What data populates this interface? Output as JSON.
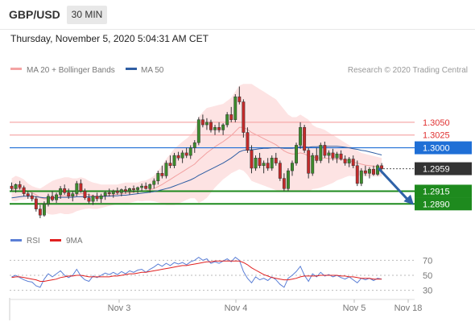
{
  "header": {
    "pair": "GBP/USD",
    "timeframe": "30 MIN"
  },
  "datetime": "Thursday, November 5, 2020 5:04:31 AM CET",
  "credit": "Research © 2020 Trading Central",
  "legend": {
    "bollinger": {
      "label": "MA 20 + Bollinger Bands",
      "color": "#f4a3a3"
    },
    "ma50": {
      "label": "MA 50",
      "color": "#2f5ea3"
    },
    "rsi": {
      "label": "RSI",
      "color": "#5b7fd6"
    },
    "rsi_ma": {
      "label": "9MA",
      "color": "#e02020"
    }
  },
  "chart_data": [
    {
      "type": "candlestick",
      "ylim": [
        1.284,
        1.3135
      ],
      "x_ticks": [
        "Nov 3",
        "Nov 4",
        "Nov 5",
        "Nov 18"
      ],
      "levels": [
        {
          "value": 1.305,
          "label": "1.3050",
          "kind": "resistance",
          "color": "#e03030"
        },
        {
          "value": 1.3025,
          "label": "1.3025",
          "kind": "resistance",
          "color": "#e03030"
        },
        {
          "value": 1.3,
          "label": "1.3000",
          "kind": "pivot",
          "color": "#1f6fd6"
        },
        {
          "value": 1.2915,
          "label": "1.2915",
          "kind": "support",
          "color": "#1e8a1e"
        },
        {
          "value": 1.289,
          "label": "1.2890",
          "kind": "support",
          "color": "#1e8a1e"
        }
      ],
      "current_price": {
        "value": 1.2959,
        "label": "1.2959",
        "color": "#333333"
      },
      "forecast_arrow": {
        "from": 1.296,
        "to": 1.2888,
        "color": "#2f62a8"
      },
      "candles": [
        [
          1.2925,
          1.2932,
          1.2915,
          1.292
        ],
        [
          1.292,
          1.293,
          1.2912,
          1.2928
        ],
        [
          1.2928,
          1.2935,
          1.2918,
          1.2922
        ],
        [
          1.2922,
          1.2926,
          1.2905,
          1.291
        ],
        [
          1.291,
          1.2915,
          1.29,
          1.2906
        ],
        [
          1.2906,
          1.2912,
          1.2895,
          1.29
        ],
        [
          1.29,
          1.2905,
          1.2875,
          1.288
        ],
        [
          1.288,
          1.2888,
          1.2862,
          1.2868
        ],
        [
          1.2868,
          1.2895,
          1.2865,
          1.289
        ],
        [
          1.289,
          1.291,
          1.2885,
          1.2905
        ],
        [
          1.2905,
          1.2915,
          1.2895,
          1.2898
        ],
        [
          1.2898,
          1.2912,
          1.2892,
          1.2908
        ],
        [
          1.2908,
          1.2925,
          1.29,
          1.292
        ],
        [
          1.292,
          1.2928,
          1.2908,
          1.2912
        ],
        [
          1.2912,
          1.292,
          1.29,
          1.2905
        ],
        [
          1.2905,
          1.2915,
          1.2895,
          1.291
        ],
        [
          1.291,
          1.2935,
          1.2905,
          1.293
        ],
        [
          1.293,
          1.2938,
          1.2912,
          1.2915
        ],
        [
          1.2915,
          1.292,
          1.2898,
          1.2902
        ],
        [
          1.2902,
          1.291,
          1.289,
          1.2895
        ],
        [
          1.2895,
          1.2908,
          1.2888,
          1.2905
        ],
        [
          1.2905,
          1.2912,
          1.2895,
          1.29
        ],
        [
          1.29,
          1.291,
          1.2892,
          1.2906
        ],
        [
          1.2906,
          1.2915,
          1.2898,
          1.2912
        ],
        [
          1.2912,
          1.292,
          1.2905,
          1.291
        ],
        [
          1.291,
          1.2918,
          1.2902,
          1.2915
        ],
        [
          1.2915,
          1.2922,
          1.2908,
          1.2912
        ],
        [
          1.2912,
          1.292,
          1.2905,
          1.2918
        ],
        [
          1.2918,
          1.2925,
          1.291,
          1.2915
        ],
        [
          1.2915,
          1.2922,
          1.2908,
          1.292
        ],
        [
          1.292,
          1.2926,
          1.2912,
          1.2918
        ],
        [
          1.2918,
          1.2924,
          1.291,
          1.2922
        ],
        [
          1.2922,
          1.293,
          1.2915,
          1.2925
        ],
        [
          1.2925,
          1.2932,
          1.2918,
          1.292
        ],
        [
          1.292,
          1.293,
          1.2912,
          1.2928
        ],
        [
          1.2928,
          1.294,
          1.292,
          1.2935
        ],
        [
          1.2935,
          1.2955,
          1.2928,
          1.295
        ],
        [
          1.295,
          1.2965,
          1.294,
          1.2945
        ],
        [
          1.2945,
          1.2975,
          1.294,
          1.297
        ],
        [
          1.297,
          1.2985,
          1.296,
          1.2965
        ],
        [
          1.2965,
          1.299,
          1.296,
          1.2985
        ],
        [
          1.2985,
          1.2992,
          1.2975,
          1.298
        ],
        [
          1.298,
          1.2995,
          1.297,
          1.299
        ],
        [
          1.299,
          1.3,
          1.298,
          1.2985
        ],
        [
          1.2985,
          1.3005,
          1.2978,
          1.3
        ],
        [
          1.3,
          1.3015,
          1.299,
          1.301
        ],
        [
          1.301,
          1.306,
          1.3005,
          1.3055
        ],
        [
          1.3055,
          1.3065,
          1.304,
          1.3045
        ],
        [
          1.3045,
          1.3058,
          1.3035,
          1.305
        ],
        [
          1.305,
          1.3055,
          1.303,
          1.3035
        ],
        [
          1.3035,
          1.3045,
          1.3025,
          1.304
        ],
        [
          1.304,
          1.305,
          1.303,
          1.3035
        ],
        [
          1.3035,
          1.3048,
          1.3025,
          1.3045
        ],
        [
          1.3045,
          1.307,
          1.304,
          1.3065
        ],
        [
          1.3065,
          1.308,
          1.305,
          1.3055
        ],
        [
          1.3055,
          1.3105,
          1.305,
          1.31
        ],
        [
          1.31,
          1.312,
          1.3085,
          1.309
        ],
        [
          1.309,
          1.3095,
          1.302,
          1.303
        ],
        [
          1.303,
          1.304,
          1.299,
          1.2995
        ],
        [
          1.2995,
          1.3005,
          1.295,
          1.296
        ],
        [
          1.296,
          1.2985,
          1.2955,
          1.298
        ],
        [
          1.298,
          1.299,
          1.296,
          1.2965
        ],
        [
          1.2965,
          1.2975,
          1.295,
          1.297
        ],
        [
          1.297,
          1.298,
          1.2955,
          1.296
        ],
        [
          1.296,
          1.2985,
          1.2955,
          1.298
        ],
        [
          1.298,
          1.299,
          1.2965,
          1.297
        ],
        [
          1.297,
          1.2975,
          1.2935,
          1.294
        ],
        [
          1.294,
          1.295,
          1.2915,
          1.292
        ],
        [
          1.292,
          1.296,
          1.2915,
          1.2955
        ],
        [
          1.2955,
          1.2975,
          1.2945,
          1.297
        ],
        [
          1.297,
          1.301,
          1.2965,
          1.3005
        ],
        [
          1.3005,
          1.305,
          1.2998,
          1.304
        ],
        [
          1.304,
          1.3045,
          1.299,
          1.2995
        ],
        [
          1.2995,
          1.3,
          1.294,
          1.295
        ],
        [
          1.295,
          1.299,
          1.2945,
          1.2985
        ],
        [
          1.2985,
          1.3,
          1.297,
          1.2975
        ],
        [
          1.2975,
          1.301,
          1.297,
          1.3005
        ],
        [
          1.3005,
          1.3012,
          1.298,
          1.2985
        ],
        [
          1.2985,
          1.2995,
          1.297,
          1.299
        ],
        [
          1.299,
          1.2998,
          1.2975,
          1.298
        ],
        [
          1.298,
          1.2992,
          1.297,
          1.2988
        ],
        [
          1.2988,
          1.2995,
          1.2975,
          1.2978
        ],
        [
          1.2978,
          1.2985,
          1.2965,
          1.297
        ],
        [
          1.297,
          1.2982,
          1.2962,
          1.2978
        ],
        [
          1.2978,
          1.2985,
          1.296,
          1.2965
        ],
        [
          1.2965,
          1.2975,
          1.2925,
          1.293
        ],
        [
          1.293,
          1.296,
          1.2925,
          1.2955
        ],
        [
          1.2955,
          1.2965,
          1.2945,
          1.295
        ],
        [
          1.295,
          1.2962,
          1.294,
          1.2958
        ],
        [
          1.2958,
          1.2965,
          1.2945,
          1.2948
        ],
        [
          1.2948,
          1.2968,
          1.2945,
          1.2965
        ],
        [
          1.2965,
          1.297,
          1.295,
          1.2959
        ]
      ],
      "bollinger": {
        "upper": [
          1.294,
          1.2945,
          1.2942,
          1.2938,
          1.293,
          1.2925,
          1.2922,
          1.292,
          1.2925,
          1.293,
          1.2935,
          1.2938,
          1.294,
          1.2942,
          1.2942,
          1.294,
          1.294,
          1.2942,
          1.294,
          1.2935,
          1.2932,
          1.293,
          1.2928,
          1.2928,
          1.2928,
          1.2928,
          1.2928,
          1.293,
          1.2932,
          1.2932,
          1.2932,
          1.2932,
          1.2935,
          1.2936,
          1.294,
          1.2945,
          1.2955,
          1.2965,
          1.2978,
          1.2988,
          1.2998,
          1.3005,
          1.3012,
          1.3018,
          1.3025,
          1.3035,
          1.306,
          1.307,
          1.3078,
          1.308,
          1.3082,
          1.3084,
          1.3086,
          1.3092,
          1.3098,
          1.311,
          1.3122,
          1.3125,
          1.3125,
          1.3125,
          1.312,
          1.3115,
          1.311,
          1.3105,
          1.31,
          1.3095,
          1.3085,
          1.3075,
          1.3065,
          1.306,
          1.306,
          1.3065,
          1.306,
          1.3055,
          1.3045,
          1.304,
          1.3038,
          1.3035,
          1.303,
          1.3025,
          1.302,
          1.3015,
          1.301,
          1.3005,
          1.3,
          1.2995,
          1.299,
          1.2988,
          1.2986,
          1.2984,
          1.2982,
          1.298
        ],
        "middle": [
          1.2918,
          1.292,
          1.292,
          1.2918,
          1.2915,
          1.2912,
          1.2908,
          1.2902,
          1.29,
          1.29,
          1.2902,
          1.2904,
          1.2906,
          1.2906,
          1.2906,
          1.2906,
          1.2908,
          1.291,
          1.291,
          1.2908,
          1.2906,
          1.2905,
          1.2905,
          1.2906,
          1.2907,
          1.2908,
          1.2909,
          1.291,
          1.2911,
          1.2912,
          1.2913,
          1.2914,
          1.2915,
          1.2916,
          1.2918,
          1.292,
          1.2924,
          1.2928,
          1.2933,
          1.2938,
          1.2943,
          1.2948,
          1.2953,
          1.2958,
          1.2963,
          1.2968,
          1.2976,
          1.2983,
          1.299,
          1.2996,
          1.3002,
          1.3007,
          1.3012,
          1.3018,
          1.3024,
          1.3032,
          1.304,
          1.304,
          1.3036,
          1.303,
          1.3026,
          1.3022,
          1.3018,
          1.3014,
          1.301,
          1.3006,
          1.3,
          1.2994,
          1.299,
          1.2988,
          1.2988,
          1.299,
          1.2988,
          1.2984,
          1.2982,
          1.298,
          1.298,
          1.298,
          1.2979,
          1.2978,
          1.2978,
          1.2977,
          1.2976,
          1.2975,
          1.2972,
          1.297,
          1.2968,
          1.2966,
          1.2965,
          1.2964,
          1.2963,
          1.2962
        ],
        "lower": [
          1.2896,
          1.2895,
          1.2898,
          1.2898,
          1.29,
          1.2899,
          1.2894,
          1.2884,
          1.2875,
          1.287,
          1.2869,
          1.287,
          1.2872,
          1.287,
          1.287,
          1.2872,
          1.2876,
          1.2878,
          1.288,
          1.2881,
          1.288,
          1.288,
          1.2882,
          1.2884,
          1.2886,
          1.2888,
          1.289,
          1.289,
          1.289,
          1.2892,
          1.2894,
          1.2896,
          1.2895,
          1.2896,
          1.2896,
          1.2895,
          1.2893,
          1.2891,
          1.2888,
          1.2888,
          1.2888,
          1.2891,
          1.2894,
          1.2898,
          1.2901,
          1.2901,
          1.2892,
          1.2896,
          1.2902,
          1.2912,
          1.2922,
          1.293,
          1.2938,
          1.2944,
          1.295,
          1.2954,
          1.2958,
          1.2955,
          1.2947,
          1.2935,
          1.2932,
          1.2929,
          1.2926,
          1.2923,
          1.292,
          1.2917,
          1.2915,
          1.2913,
          1.2915,
          1.2916,
          1.2916,
          1.2915,
          1.2916,
          1.2913,
          1.2919,
          1.292,
          1.2922,
          1.2925,
          1.2928,
          1.2931,
          1.2936,
          1.2939,
          1.2942,
          1.2945,
          1.2944,
          1.2945,
          1.2946,
          1.2944,
          1.2944,
          1.2944,
          1.2944,
          1.2944
        ]
      },
      "ma50": [
        1.2902,
        1.2903,
        1.2904,
        1.2905,
        1.2905,
        1.2905,
        1.2904,
        1.2903,
        1.2902,
        1.2902,
        1.2902,
        1.2902,
        1.2903,
        1.2903,
        1.2903,
        1.2903,
        1.2904,
        1.2904,
        1.2904,
        1.2904,
        1.2904,
        1.2904,
        1.2904,
        1.2905,
        1.2905,
        1.2906,
        1.2906,
        1.2907,
        1.2907,
        1.2908,
        1.2909,
        1.291,
        1.2911,
        1.2912,
        1.2913,
        1.2914,
        1.2916,
        1.2918,
        1.292,
        1.2922,
        1.2925,
        1.2928,
        1.2931,
        1.2934,
        1.2937,
        1.2941,
        1.2946,
        1.295,
        1.2954,
        1.2958,
        1.2962,
        1.2966,
        1.297,
        1.2975,
        1.298,
        1.2986,
        1.2992,
        1.2995,
        1.2996,
        1.2996,
        1.2997,
        1.2998,
        1.2999,
        1.2999,
        1.3,
        1.3,
        1.3,
        1.2999,
        1.2999,
        1.2999,
        1.3,
        1.3002,
        1.3002,
        1.3001,
        1.3002,
        1.3002,
        1.3003,
        1.3003,
        1.3003,
        1.3003,
        1.3003,
        1.3002,
        1.3001,
        1.3,
        1.2998,
        1.2997,
        1.2995,
        1.2994,
        1.2992,
        1.299,
        1.2988,
        1.2986
      ]
    },
    {
      "type": "line",
      "ylim": [
        20,
        80
      ],
      "y_ticks": [
        70,
        50,
        30
      ],
      "series": [
        {
          "name": "RSI",
          "values": [
            48,
            50,
            47,
            44,
            42,
            41,
            36,
            34,
            45,
            52,
            48,
            52,
            56,
            50,
            47,
            50,
            58,
            49,
            44,
            42,
            49,
            47,
            50,
            53,
            51,
            54,
            51,
            55,
            52,
            56,
            54,
            57,
            58,
            54,
            58,
            61,
            65,
            62,
            66,
            63,
            67,
            65,
            67,
            64,
            68,
            70,
            74,
            70,
            72,
            66,
            68,
            66,
            69,
            72,
            68,
            74,
            70,
            55,
            46,
            40,
            48,
            44,
            46,
            43,
            48,
            44,
            38,
            34,
            46,
            50,
            55,
            62,
            50,
            42,
            52,
            48,
            54,
            49,
            51,
            48,
            50,
            47,
            45,
            48,
            44,
            40,
            46,
            44,
            46,
            43,
            46,
            45
          ]
        },
        {
          "name": "9MA",
          "values": [
            47,
            48,
            48,
            47,
            46,
            45,
            44,
            42,
            42,
            43,
            44,
            45,
            47,
            48,
            49,
            49,
            50,
            50,
            49,
            48,
            48,
            48,
            48,
            48,
            48,
            49,
            49,
            50,
            51,
            52,
            52,
            53,
            54,
            54,
            55,
            56,
            57,
            58,
            59,
            60,
            61,
            62,
            63,
            63,
            64,
            65,
            66,
            67,
            68,
            68,
            69,
            69,
            69,
            69,
            69,
            69,
            69,
            67,
            64,
            60,
            57,
            54,
            51,
            49,
            47,
            46,
            45,
            44,
            44,
            45,
            46,
            48,
            49,
            49,
            49,
            49,
            50,
            50,
            50,
            50,
            50,
            49,
            49,
            48,
            48,
            47,
            46,
            46,
            46,
            45,
            45,
            45
          ]
        }
      ]
    }
  ]
}
